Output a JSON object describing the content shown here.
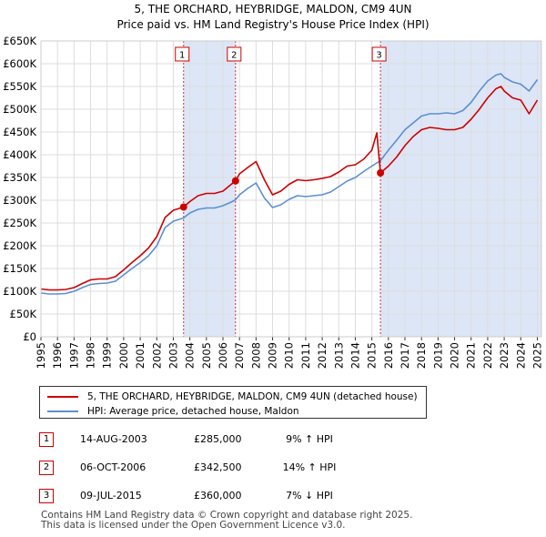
{
  "chart_data": {
    "type": "line",
    "title": "5, THE ORCHARD, HEYBRIDGE, MALDON, CM9 4UN",
    "subtitle": "Price paid vs. HM Land Registry's House Price Index (HPI)",
    "xlabel": "",
    "ylabel": "",
    "xlim": [
      1995.0,
      2025.25
    ],
    "ylim": [
      0,
      650000
    ],
    "yticks": [
      0,
      50000,
      100000,
      150000,
      200000,
      250000,
      300000,
      350000,
      400000,
      450000,
      500000,
      550000,
      600000,
      650000
    ],
    "ytick_labels": [
      "£0",
      "£50K",
      "£100K",
      "£150K",
      "£200K",
      "£250K",
      "£300K",
      "£350K",
      "£400K",
      "£450K",
      "£500K",
      "£550K",
      "£600K",
      "£650K"
    ],
    "xticks": [
      1995,
      1996,
      1997,
      1998,
      1999,
      2000,
      2001,
      2002,
      2003,
      2004,
      2005,
      2006,
      2007,
      2008,
      2009,
      2010,
      2011,
      2012,
      2013,
      2014,
      2015,
      2016,
      2017,
      2018,
      2019,
      2020,
      2021,
      2022,
      2023,
      2024,
      2025
    ],
    "grid": true,
    "series": [
      {
        "name": "5, THE ORCHARD, HEYBRIDGE, MALDON, CM9 4UN (detached house)",
        "color": "#cc0000",
        "x": [
          1995.0,
          1995.5,
          1996.0,
          1996.5,
          1997.0,
          1997.5,
          1998.0,
          1998.5,
          1999.0,
          1999.5,
          2000.0,
          2000.5,
          2001.0,
          2001.5,
          2002.0,
          2002.5,
          2003.0,
          2003.62,
          2004.0,
          2004.5,
          2005.0,
          2005.5,
          2006.0,
          2006.5,
          2006.76,
          2007.0,
          2007.5,
          2008.0,
          2008.5,
          2009.0,
          2009.5,
          2010.0,
          2010.5,
          2011.0,
          2011.5,
          2012.0,
          2012.5,
          2013.0,
          2013.5,
          2014.0,
          2014.5,
          2015.0,
          2015.3,
          2015.52,
          2016.0,
          2016.5,
          2017.0,
          2017.5,
          2018.0,
          2018.5,
          2019.0,
          2019.5,
          2020.0,
          2020.5,
          2021.0,
          2021.5,
          2022.0,
          2022.5,
          2022.8,
          2023.0,
          2023.5,
          2024.0,
          2024.5,
          2025.0
        ],
        "values": [
          105000,
          103000,
          103000,
          104000,
          108000,
          117000,
          125000,
          127000,
          127000,
          132000,
          147000,
          163000,
          178000,
          195000,
          220000,
          262000,
          278000,
          285000,
          297000,
          310000,
          315000,
          315000,
          320000,
          335000,
          342500,
          358000,
          372000,
          385000,
          345000,
          312000,
          320000,
          335000,
          345000,
          343000,
          345000,
          348000,
          352000,
          362000,
          375000,
          378000,
          390000,
          410000,
          448000,
          360000,
          375000,
          395000,
          420000,
          440000,
          455000,
          460000,
          458000,
          455000,
          455000,
          460000,
          478000,
          500000,
          525000,
          545000,
          550000,
          540000,
          525000,
          520000,
          490000,
          520000
        ]
      },
      {
        "name": "HPI: Average price, detached house, Maldon",
        "color": "#5b8fd4",
        "x": [
          1995.0,
          1995.5,
          1996.0,
          1996.5,
          1997.0,
          1997.5,
          1998.0,
          1998.5,
          1999.0,
          1999.5,
          2000.0,
          2000.5,
          2001.0,
          2001.5,
          2002.0,
          2002.5,
          2003.0,
          2003.62,
          2004.0,
          2004.5,
          2005.0,
          2005.5,
          2006.0,
          2006.5,
          2006.76,
          2007.0,
          2007.5,
          2008.0,
          2008.5,
          2009.0,
          2009.5,
          2010.0,
          2010.5,
          2011.0,
          2011.5,
          2012.0,
          2012.5,
          2013.0,
          2013.5,
          2014.0,
          2014.5,
          2015.0,
          2015.52,
          2016.0,
          2016.5,
          2017.0,
          2017.5,
          2018.0,
          2018.5,
          2019.0,
          2019.5,
          2020.0,
          2020.5,
          2021.0,
          2021.5,
          2022.0,
          2022.5,
          2022.8,
          2023.0,
          2023.5,
          2024.0,
          2024.5,
          2025.0
        ],
        "values": [
          96000,
          94000,
          94000,
          95000,
          100000,
          108000,
          115000,
          117000,
          118000,
          122000,
          136000,
          150000,
          163000,
          178000,
          200000,
          240000,
          254000,
          261000,
          272000,
          280000,
          283000,
          283000,
          288000,
          296000,
          301000,
          312000,
          326000,
          338000,
          305000,
          284000,
          290000,
          302000,
          310000,
          308000,
          310000,
          312000,
          318000,
          330000,
          342000,
          350000,
          363000,
          375000,
          387000,
          410000,
          432000,
          455000,
          470000,
          485000,
          490000,
          490000,
          492000,
          490000,
          497000,
          515000,
          540000,
          562000,
          575000,
          578000,
          570000,
          560000,
          555000,
          540000,
          565000
        ]
      }
    ],
    "sales": [
      {
        "label": "1",
        "x": 2003.62,
        "value": 285000,
        "date": "14-AUG-2003",
        "price": "£285,000",
        "hpi": "9% ↑ HPI"
      },
      {
        "label": "2",
        "x": 2006.76,
        "value": 342500,
        "date": "06-OCT-2006",
        "price": "£342,500",
        "hpi": "14% ↑ HPI"
      },
      {
        "label": "3",
        "x": 2015.52,
        "value": 360000,
        "date": "09-JUL-2015",
        "price": "£360,000",
        "hpi": "7% ↓ HPI"
      }
    ],
    "shaded_ranges": [
      [
        2003.62,
        2006.76
      ],
      [
        2015.52,
        2025.25
      ]
    ]
  },
  "footer": {
    "line1": "Contains HM Land Registry data © Crown copyright and database right 2025.",
    "line2": "This data is licensed under the Open Government Licence v3.0."
  },
  "colors": {
    "property": "#cc0000",
    "hpi": "#5b8fd4",
    "shade": "#dde6f7",
    "grid": "#dddddd"
  }
}
